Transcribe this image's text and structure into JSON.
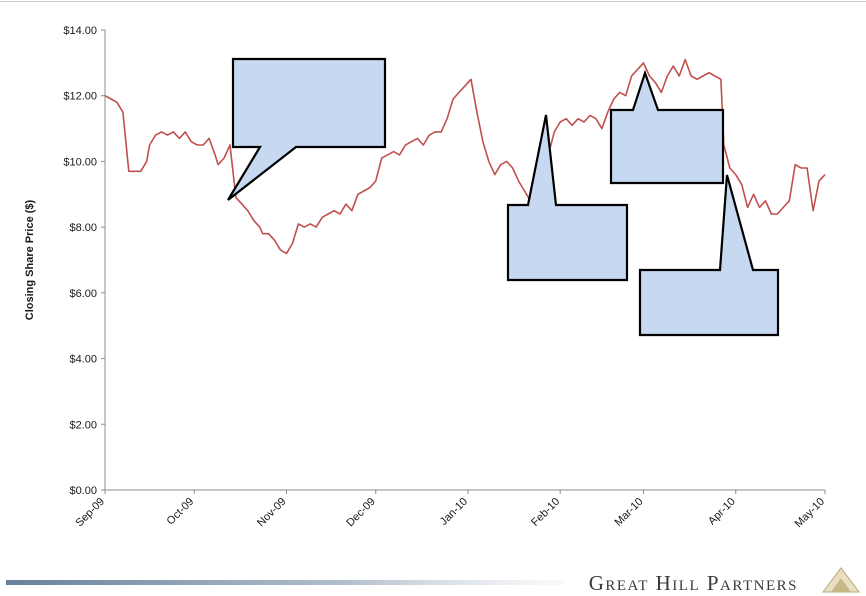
{
  "chart_data": {
    "type": "line",
    "title": "",
    "xlabel": "",
    "ylabel": "Closing Share Price ($)",
    "ylim": [
      0,
      14
    ],
    "y_ticks": [
      "$0.00",
      "$2.00",
      "$4.00",
      "$6.00",
      "$8.00",
      "$10.00",
      "$12.00",
      "$14.00"
    ],
    "y_tick_values": [
      0,
      2,
      4,
      6,
      8,
      10,
      12,
      14
    ],
    "x_ticks": [
      "Sep-09",
      "Oct-09",
      "Nov-09",
      "Dec-09",
      "Jan-10",
      "Feb-10",
      "Mar-10",
      "Apr-10",
      "May-10"
    ],
    "x_tick_dates": [
      "2009-09-01",
      "2009-10-01",
      "2009-11-01",
      "2009-12-01",
      "2010-01-01",
      "2010-02-01",
      "2010-03-01",
      "2010-04-01",
      "2010-05-01"
    ],
    "xlim": [
      "2009-09-01",
      "2010-05-01"
    ],
    "grid": false,
    "series": [
      {
        "color": "#c0504d",
        "points": [
          [
            "2009-09-01",
            12.0
          ],
          [
            "2009-09-03",
            11.9
          ],
          [
            "2009-09-05",
            11.8
          ],
          [
            "2009-09-07",
            11.5
          ],
          [
            "2009-09-09",
            9.7
          ],
          [
            "2009-09-11",
            9.7
          ],
          [
            "2009-09-13",
            9.7
          ],
          [
            "2009-09-15",
            10.0
          ],
          [
            "2009-09-16",
            10.5
          ],
          [
            "2009-09-18",
            10.8
          ],
          [
            "2009-09-20",
            10.9
          ],
          [
            "2009-09-22",
            10.8
          ],
          [
            "2009-09-24",
            10.9
          ],
          [
            "2009-09-26",
            10.7
          ],
          [
            "2009-09-28",
            10.9
          ],
          [
            "2009-09-30",
            10.6
          ],
          [
            "2009-10-02",
            10.5
          ],
          [
            "2009-10-04",
            10.5
          ],
          [
            "2009-10-06",
            10.7
          ],
          [
            "2009-10-08",
            10.2
          ],
          [
            "2009-10-09",
            9.9
          ],
          [
            "2009-10-11",
            10.1
          ],
          [
            "2009-10-13",
            10.5
          ],
          [
            "2009-10-15",
            8.9
          ],
          [
            "2009-10-17",
            8.7
          ],
          [
            "2009-10-19",
            8.5
          ],
          [
            "2009-10-21",
            8.2
          ],
          [
            "2009-10-23",
            8.0
          ],
          [
            "2009-10-24",
            7.8
          ],
          [
            "2009-10-26",
            7.8
          ],
          [
            "2009-10-28",
            7.6
          ],
          [
            "2009-10-30",
            7.3
          ],
          [
            "2009-11-01",
            7.2
          ],
          [
            "2009-11-03",
            7.5
          ],
          [
            "2009-11-05",
            8.1
          ],
          [
            "2009-11-07",
            8.0
          ],
          [
            "2009-11-09",
            8.1
          ],
          [
            "2009-11-11",
            8.0
          ],
          [
            "2009-11-13",
            8.3
          ],
          [
            "2009-11-15",
            8.4
          ],
          [
            "2009-11-17",
            8.5
          ],
          [
            "2009-11-19",
            8.4
          ],
          [
            "2009-11-21",
            8.7
          ],
          [
            "2009-11-23",
            8.5
          ],
          [
            "2009-11-25",
            9.0
          ],
          [
            "2009-11-27",
            9.1
          ],
          [
            "2009-11-29",
            9.2
          ],
          [
            "2009-12-01",
            9.4
          ],
          [
            "2009-12-03",
            10.1
          ],
          [
            "2009-12-05",
            10.2
          ],
          [
            "2009-12-07",
            10.3
          ],
          [
            "2009-12-09",
            10.2
          ],
          [
            "2009-12-11",
            10.5
          ],
          [
            "2009-12-13",
            10.6
          ],
          [
            "2009-12-15",
            10.7
          ],
          [
            "2009-12-17",
            10.5
          ],
          [
            "2009-12-19",
            10.8
          ],
          [
            "2009-12-21",
            10.9
          ],
          [
            "2009-12-23",
            10.9
          ],
          [
            "2009-12-25",
            11.3
          ],
          [
            "2009-12-27",
            11.9
          ],
          [
            "2009-12-29",
            12.1
          ],
          [
            "2009-12-31",
            12.3
          ],
          [
            "2010-01-02",
            12.5
          ],
          [
            "2010-01-04",
            11.5
          ],
          [
            "2010-01-06",
            10.6
          ],
          [
            "2010-01-08",
            10.0
          ],
          [
            "2010-01-10",
            9.6
          ],
          [
            "2010-01-12",
            9.9
          ],
          [
            "2010-01-14",
            10.0
          ],
          [
            "2010-01-16",
            9.8
          ],
          [
            "2010-01-18",
            9.4
          ],
          [
            "2010-01-20",
            9.1
          ],
          [
            "2010-01-22",
            8.8
          ],
          [
            "2010-01-24",
            9.4
          ],
          [
            "2010-01-26",
            9.8
          ],
          [
            "2010-01-28",
            10.2
          ],
          [
            "2010-01-30",
            10.9
          ],
          [
            "2010-02-01",
            11.2
          ],
          [
            "2010-02-03",
            11.3
          ],
          [
            "2010-02-05",
            11.1
          ],
          [
            "2010-02-07",
            11.3
          ],
          [
            "2010-02-09",
            11.2
          ],
          [
            "2010-02-11",
            11.4
          ],
          [
            "2010-02-13",
            11.3
          ],
          [
            "2010-02-15",
            11.0
          ],
          [
            "2010-02-17",
            11.5
          ],
          [
            "2010-02-19",
            11.9
          ],
          [
            "2010-02-21",
            12.1
          ],
          [
            "2010-02-23",
            12.0
          ],
          [
            "2010-02-25",
            12.6
          ],
          [
            "2010-02-27",
            12.8
          ],
          [
            "2010-03-01",
            13.0
          ],
          [
            "2010-03-03",
            12.6
          ],
          [
            "2010-03-05",
            12.4
          ],
          [
            "2010-03-07",
            12.1
          ],
          [
            "2010-03-09",
            12.6
          ],
          [
            "2010-03-11",
            12.9
          ],
          [
            "2010-03-13",
            12.6
          ],
          [
            "2010-03-15",
            13.1
          ],
          [
            "2010-03-17",
            12.6
          ],
          [
            "2010-03-19",
            12.5
          ],
          [
            "2010-03-21",
            12.6
          ],
          [
            "2010-03-23",
            12.7
          ],
          [
            "2010-03-25",
            12.6
          ],
          [
            "2010-03-27",
            12.5
          ],
          [
            "2010-03-28",
            10.5
          ],
          [
            "2010-03-30",
            9.8
          ],
          [
            "2010-04-01",
            9.6
          ],
          [
            "2010-04-03",
            9.3
          ],
          [
            "2010-04-05",
            8.6
          ],
          [
            "2010-04-07",
            9.0
          ],
          [
            "2010-04-09",
            8.6
          ],
          [
            "2010-04-11",
            8.8
          ],
          [
            "2010-04-13",
            8.4
          ],
          [
            "2010-04-15",
            8.4
          ],
          [
            "2010-04-17",
            8.6
          ],
          [
            "2010-04-19",
            8.8
          ],
          [
            "2010-04-21",
            9.9
          ],
          [
            "2010-04-23",
            9.8
          ],
          [
            "2010-04-25",
            9.8
          ],
          [
            "2010-04-27",
            8.5
          ],
          [
            "2010-04-29",
            9.4
          ],
          [
            "2010-05-01",
            9.6
          ]
        ]
      }
    ],
    "annotations": [
      {
        "shape": "callout",
        "text": ""
      },
      {
        "shape": "callout",
        "text": ""
      },
      {
        "shape": "callout",
        "text": ""
      },
      {
        "shape": "callout",
        "text": ""
      }
    ]
  },
  "footer": {
    "brand": "Great Hill Partners"
  },
  "colors": {
    "line": "#c0504d",
    "callout_fill": "#c6d9f1",
    "callout_stroke": "#000000",
    "axis": "#8c8c8c",
    "text": "#1a1a1a"
  }
}
